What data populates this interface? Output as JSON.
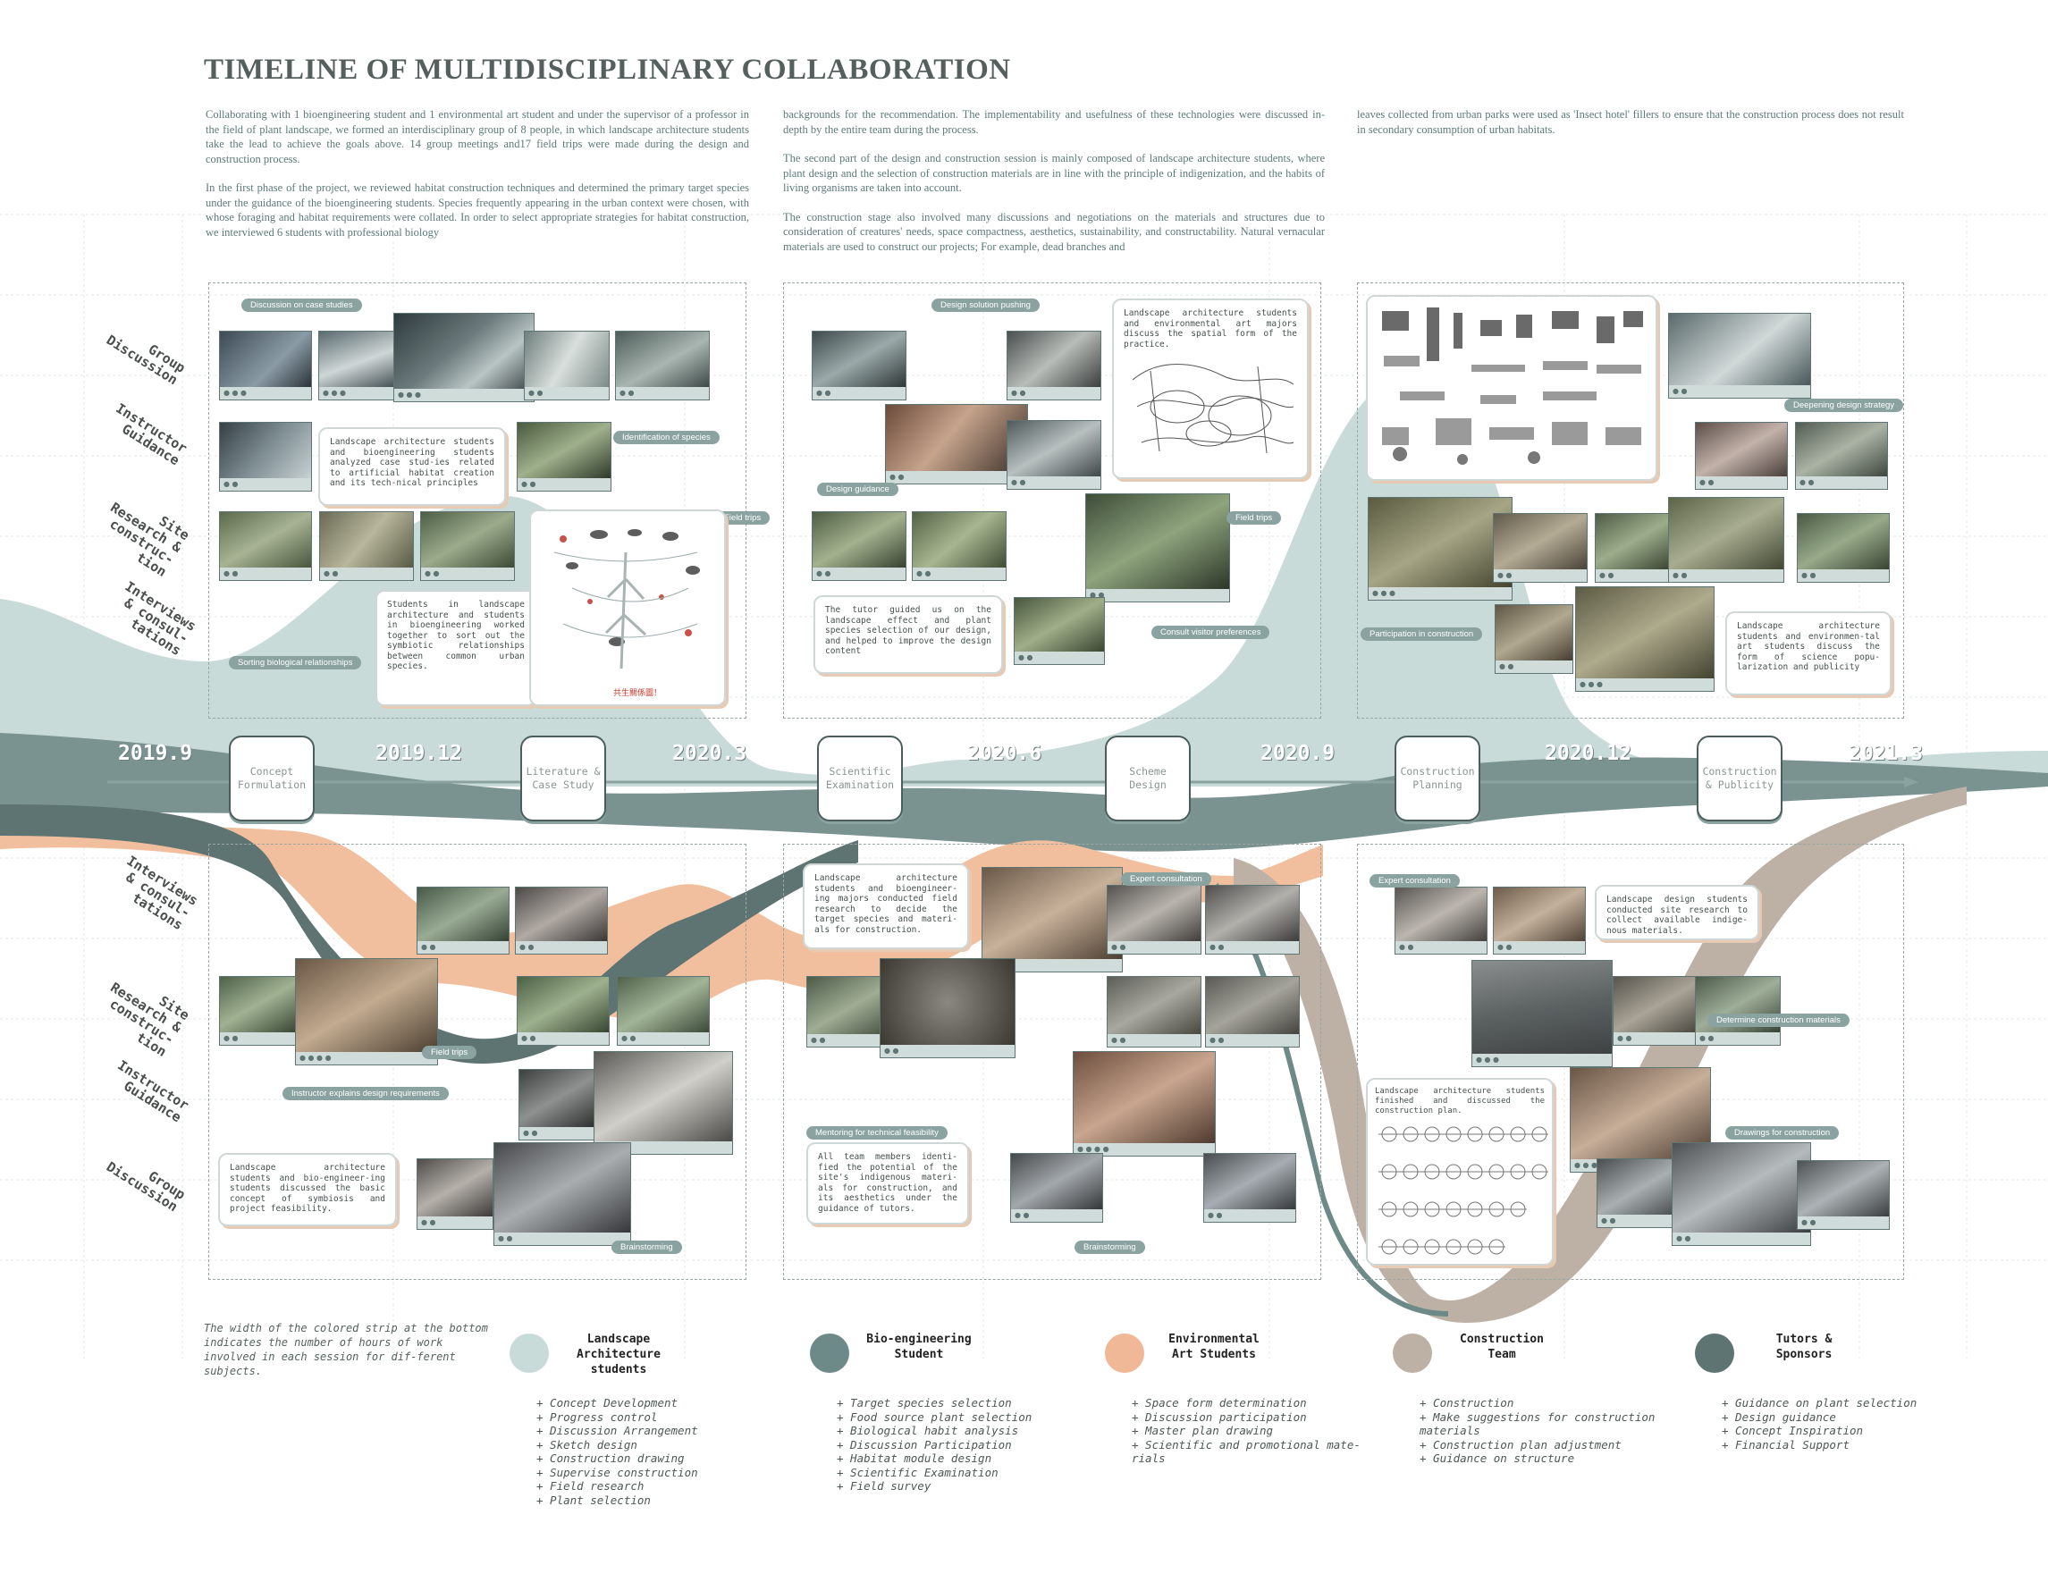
{
  "title": "TIMELINE OF MULTIDISCIPLINARY COLLABORATION",
  "intro": {
    "col1_p1": "Collaborating with 1 bioengineering student and 1 environmental art student and under the supervisor of a professor in the field of plant landscape, we formed an interdisciplinary group of 8 people, in which landscape architecture students take the lead to achieve the goals above. 14 group meetings and17 field trips were made during the design and construction process.",
    "col1_p2": "In the first phase of the project, we reviewed habitat construction techniques and determined the primary target species under the guidance of the bioengineering students. Species frequently appearing in the urban context were chosen, with whose foraging and habitat requirements were collated. In order to select appropriate strategies for habitat construction, we interviewed 6 students with professional biology",
    "col2_p1": "backgrounds for the recommendation. The implementability and usefulness of these technologies were discussed in-depth by the entire team during the process.",
    "col2_p2": "The second part of the design and construction session is mainly composed of landscape architecture students, where plant design and the selection of construction materials are in line with the principle of indigenization, and the habits of living organisms are taken into account.",
    "col2_p3": "The construction stage also involved many discussions and negotiations on the materials and structures due to consideration of creatures' needs, space compactness, aesthetics, sustainability, and constructability. Natural vernacular materials are used to construct our projects; For example, dead branches and",
    "col3_p1": "leaves collected from urban parks were used as 'Insect hotel' fillers to ensure that the construction process does not result in secondary consumption of urban habitats."
  },
  "side_labels_top": [
    "Group\nDiscussion",
    "Instructor\nGuidance",
    "Site\nResearch &\nconstruc-\ntion",
    "Interviews\n& consul-\ntations"
  ],
  "side_labels_bottom": [
    "Interviews\n& consul-\ntations",
    "Site\nResearch &\nconstruc-\ntion",
    "Instructor\nGuidance",
    "Group\nDiscussion"
  ],
  "years": [
    "2019.9",
    "2019.12",
    "2020.3",
    "2020.6",
    "2020.9",
    "2020.12",
    "2021.3"
  ],
  "stages": [
    "Concept\nFormulation",
    "Literature &\nCase Study",
    "Scientific\nExamination",
    "Scheme\nDesign",
    "Construction\nPlanning",
    "Construction\n& Publicity"
  ],
  "tags": {
    "case_studies": "Discussion on case studies",
    "identification": "Identification of species",
    "field_trips_1": "Field trips",
    "sorting": "Sorting biological relationships",
    "design_solution": "Design solution pushing",
    "design_guidance": "Design guidance",
    "field_trips_2": "Field trips",
    "consult_visitor": "Consult visitor preferences",
    "deepening": "Deepening design strategy",
    "participation": "Participation in construction",
    "field_trips_3": "Field trips",
    "instructor_explains": "Instructor explains design requirements",
    "brainstorming_1": "Brainstorming",
    "expert_1": "Expert consultation",
    "mentoring": "Mentoring for technical feasibility",
    "brainstorming_2": "Brainstorming",
    "expert_2": "Expert consultation",
    "determine_materials": "Determine construction materials",
    "drawings": "Drawings for construction"
  },
  "callouts": {
    "c1": "Landscape architecture students and bioengineering students analyzed case stud-ies related to artificial habitat creation and its tech-nical principles",
    "c2": "Students in landscape architecture and students in bioengineering worked together to sort out the symbiotic relationships between common urban species.",
    "c2_img_caption": "共生關係圖！",
    "c3": "Landscape architecture students and environmental art majors discuss the spatial form of the practice.",
    "c4": "The tutor guided us on the landscape effect and plant species selection of our design, and helped to improve the design content",
    "c5": "Landscape architecture students and environmen-tal art students discuss the form of science popu-larization and publicity",
    "c6": "Landscape architecture students and bio-engineer-ing students discussed the basic concept of symbiosis and project feasibility.",
    "c7": "Landscape architecture students and bioengineer-ing majors conducted field research to decide the target species and materi-als for construction.",
    "c8": "All team members identi-fied the potential of the site's indigenous materi-als for construction, and its aesthetics under the guidance of tutors.",
    "c9": "Landscape design students conducted site research to collect available indige-nous materials.",
    "c10": "Landscape architecture students finished and discussed the construction plan."
  },
  "note": "The width of the colored strip at the bottom indicates the number of hours of work involved in each session for dif-ferent subjects.",
  "legend": [
    {
      "name": "Landscape\nArchitecture\nstudents",
      "color": "#c9dbd8",
      "items": [
        "+ Concept Development",
        "+ Progress control",
        "+ Discussion Arrangement",
        "+ Sketch design",
        "+ Construction drawing",
        "+ Supervise construction",
        "+ Field research",
        "+ Plant selection"
      ]
    },
    {
      "name": "Bio-engineering\nStudent",
      "color": "#6e8a88",
      "items": [
        "+ Target species selection",
        "+ Food source plant selection",
        "+ Biological habit analysis",
        "+ Discussion Participation",
        "+ Habitat module design",
        "+ Scientific Examination",
        "+ Field survey"
      ]
    },
    {
      "name": "Environmental\nArt Students",
      "color": "#f0b896",
      "items": [
        "+ Space form determination",
        "+ Discussion participation",
        "+ Master plan drawing",
        "+ Scientific and promotional mate-rials"
      ]
    },
    {
      "name": "Construction\nTeam",
      "color": "#bdb1a6",
      "items": [
        "+ Construction",
        "+ Make suggestions for construction materials",
        "+ Construction plan adjustment",
        "+ Guidance on structure"
      ]
    },
    {
      "name": "Tutors &\nSponsors",
      "color": "#5e7472",
      "items": [
        "+ Guidance on plant selection",
        "+ Design guidance",
        "+ Concept Inspiration",
        "+ Financial Support"
      ]
    }
  ],
  "colors": {
    "landscape": "#c9dbd8",
    "bio": "#6e8a88",
    "art": "#f0b896",
    "construction": "#bdb1a6",
    "tutors": "#5e7472"
  }
}
